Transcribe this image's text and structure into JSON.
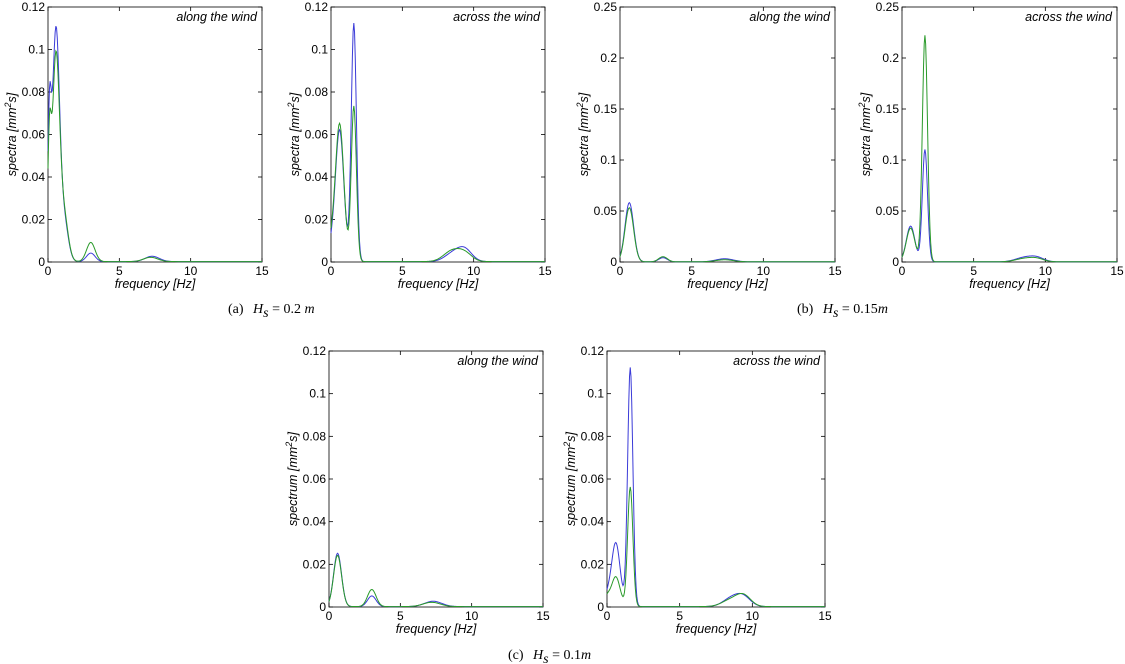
{
  "captions": [
    {
      "label": "(a)",
      "var": "H",
      "sub": "s",
      "rest": " = 0.2 ",
      "unit": "m"
    },
    {
      "label": "(b)",
      "var": "H",
      "sub": "s",
      "rest": " = 0.15",
      "unit": "m"
    },
    {
      "label": "(c)",
      "var": "H",
      "sub": "s",
      "rest": " = 0.1",
      "unit": "m"
    }
  ],
  "colors": {
    "blue": "#3b3bd8",
    "green": "#2a9a2a",
    "axis": "#000000"
  },
  "chart_data": [
    {
      "type": "line",
      "group": "(a)",
      "annotation": "along the wind",
      "xlabel": "frequency [Hz]",
      "ylabel": "spectra [mm²s]",
      "xlim": [
        0,
        15
      ],
      "ylim": [
        0,
        0.12
      ],
      "xticks": [
        0,
        5,
        10,
        15
      ],
      "yticks": [
        0,
        0.02,
        0.04,
        0.06,
        0.08,
        0.1,
        0.12
      ],
      "series": [
        {
          "color": "blue",
          "peaks": [
            [
              0.1,
              0.06,
              0.0
            ],
            [
              0.55,
              0.107,
              0.25
            ],
            [
              1.1,
              0.02,
              0.3
            ],
            [
              3.0,
              0.004,
              0.3
            ],
            [
              7.3,
              0.0025,
              0.5
            ]
          ]
        },
        {
          "color": "green",
          "peaks": [
            [
              0.1,
              0.05,
              0.0
            ],
            [
              0.55,
              0.095,
              0.25
            ],
            [
              1.1,
              0.022,
              0.3
            ],
            [
              3.0,
              0.009,
              0.3
            ],
            [
              7.2,
              0.002,
              0.5
            ]
          ]
        }
      ]
    },
    {
      "type": "line",
      "group": "(a)",
      "annotation": "across the wind",
      "xlabel": "frequency [Hz]",
      "ylabel": "spectra [mm²s]",
      "xlim": [
        0,
        15
      ],
      "ylim": [
        0,
        0.12
      ],
      "xticks": [
        0,
        5,
        10,
        15
      ],
      "yticks": [
        0,
        0.02,
        0.04,
        0.06,
        0.08,
        0.1,
        0.12
      ],
      "series": [
        {
          "color": "blue",
          "peaks": [
            [
              0.0,
              0.005,
              0.2
            ],
            [
              0.6,
              0.062,
              0.3
            ],
            [
              1.6,
              0.112,
              0.18
            ],
            [
              8.6,
              0.004,
              0.6
            ],
            [
              9.4,
              0.005,
              0.5
            ]
          ]
        },
        {
          "color": "green",
          "peaks": [
            [
              0.0,
              0.007,
              0.2
            ],
            [
              0.6,
              0.065,
              0.3
            ],
            [
              1.6,
              0.073,
              0.18
            ],
            [
              8.5,
              0.005,
              0.6
            ],
            [
              9.4,
              0.0035,
              0.5
            ]
          ]
        }
      ]
    },
    {
      "type": "line",
      "group": "(b)",
      "annotation": "along the wind",
      "xlabel": "frequency [Hz]",
      "ylabel": "spectra [mm²s]",
      "xlim": [
        0,
        15
      ],
      "ylim": [
        0,
        0.25
      ],
      "xticks": [
        0,
        5,
        10,
        15
      ],
      "yticks": [
        0,
        0.05,
        0.1,
        0.15,
        0.2,
        0.25
      ],
      "series": [
        {
          "color": "blue",
          "peaks": [
            [
              0.65,
              0.058,
              0.3
            ],
            [
              3.0,
              0.004,
              0.3
            ],
            [
              7.3,
              0.003,
              0.6
            ]
          ]
        },
        {
          "color": "green",
          "peaks": [
            [
              0.65,
              0.053,
              0.3
            ],
            [
              3.0,
              0.005,
              0.3
            ],
            [
              7.3,
              0.002,
              0.6
            ]
          ]
        }
      ]
    },
    {
      "type": "line",
      "group": "(b)",
      "annotation": "across the wind",
      "xlabel": "frequency [Hz]",
      "ylabel": "spectra [mm²s]",
      "xlim": [
        0,
        15
      ],
      "ylim": [
        0,
        0.25
      ],
      "xticks": [
        0,
        5,
        10,
        15
      ],
      "yticks": [
        0,
        0.05,
        0.1,
        0.15,
        0.2,
        0.25
      ],
      "series": [
        {
          "color": "blue",
          "peaks": [
            [
              0.6,
              0.035,
              0.3
            ],
            [
              1.6,
              0.11,
              0.18
            ],
            [
              8.5,
              0.004,
              0.6
            ],
            [
              9.4,
              0.004,
              0.5
            ]
          ]
        },
        {
          "color": "green",
          "peaks": [
            [
              0.6,
              0.033,
              0.3
            ],
            [
              1.6,
              0.222,
              0.18
            ],
            [
              8.5,
              0.003,
              0.6
            ],
            [
              9.4,
              0.003,
              0.5
            ]
          ]
        }
      ]
    },
    {
      "type": "line",
      "group": "(c)",
      "annotation": "along the wind",
      "xlabel": "frequency [Hz]",
      "ylabel": "spectrum [mm²s]",
      "xlim": [
        0,
        15
      ],
      "ylim": [
        0,
        0.12
      ],
      "xticks": [
        0,
        5,
        10,
        15
      ],
      "yticks": [
        0,
        0.02,
        0.04,
        0.06,
        0.08,
        0.1,
        0.12
      ],
      "series": [
        {
          "color": "blue",
          "peaks": [
            [
              0.6,
              0.025,
              0.28
            ],
            [
              3.0,
              0.005,
              0.3
            ],
            [
              7.3,
              0.0025,
              0.6
            ]
          ]
        },
        {
          "color": "green",
          "peaks": [
            [
              0.6,
              0.024,
              0.28
            ],
            [
              3.0,
              0.008,
              0.3
            ],
            [
              7.2,
              0.002,
              0.6
            ]
          ]
        }
      ]
    },
    {
      "type": "line",
      "group": "(c)",
      "annotation": "across the wind",
      "xlabel": "frequency [Hz]",
      "ylabel": "spectrum [mm²s]",
      "xlim": [
        0,
        15
      ],
      "ylim": [
        0,
        0.12
      ],
      "xticks": [
        0,
        5,
        10,
        15
      ],
      "yticks": [
        0,
        0.02,
        0.04,
        0.06,
        0.08,
        0.1,
        0.12
      ],
      "series": [
        {
          "color": "blue",
          "peaks": [
            [
              0.0,
              0.004,
              0.2
            ],
            [
              0.6,
              0.03,
              0.3
            ],
            [
              1.6,
              0.112,
              0.18
            ],
            [
              8.6,
              0.004,
              0.6
            ],
            [
              9.4,
              0.004,
              0.5
            ]
          ]
        },
        {
          "color": "green",
          "peaks": [
            [
              0.0,
              0.004,
              0.2
            ],
            [
              0.6,
              0.014,
              0.3
            ],
            [
              1.6,
              0.056,
              0.18
            ],
            [
              8.5,
              0.003,
              0.6
            ],
            [
              9.4,
              0.005,
              0.5
            ]
          ]
        }
      ]
    }
  ]
}
